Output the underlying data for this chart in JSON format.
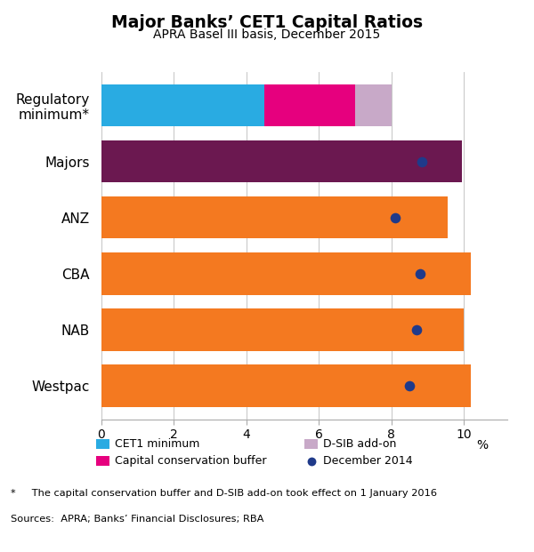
{
  "title": "Major Banks’ CET1 Capital Ratios",
  "subtitle": "APRA Basel III basis, December 2015",
  "bar_height": 0.75,
  "xlim": [
    0,
    11.2
  ],
  "xticks": [
    0,
    2,
    4,
    6,
    8,
    10
  ],
  "regulatory_segments": [
    4.5,
    2.5,
    1.0
  ],
  "regulatory_colors": [
    "#29abe2",
    "#e6007e",
    "#c8a9c8"
  ],
  "bars": [
    {
      "label": "Regulatory\nminimum*",
      "value": 8.0,
      "color": null,
      "dot": null,
      "y": 5
    },
    {
      "label": "Majors",
      "value": 9.95,
      "color": "#6b1850",
      "dot": 8.85,
      "y": 4
    },
    {
      "label": "ANZ",
      "value": 9.55,
      "color": "#f47920",
      "dot": 8.1,
      "y": 3
    },
    {
      "label": "CBA",
      "value": 10.2,
      "color": "#f47920",
      "dot": 8.8,
      "y": 2
    },
    {
      "label": "NAB",
      "value": 10.0,
      "color": "#f47920",
      "dot": 8.7,
      "y": 1
    },
    {
      "label": "Westpac",
      "value": 10.2,
      "color": "#f47920",
      "dot": 8.5,
      "y": 0
    }
  ],
  "dot_color": "#1f3a8a",
  "dot_size": 70,
  "legend_row1": [
    {
      "label": "CET1 minimum",
      "color": "#29abe2",
      "type": "patch"
    },
    {
      "label": "D-SIB add-on",
      "color": "#c8a9c8",
      "type": "patch"
    }
  ],
  "legend_row2": [
    {
      "label": "Capital conservation buffer",
      "color": "#e6007e",
      "type": "patch"
    },
    {
      "label": "December 2014",
      "color": "#1f3a8a",
      "type": "dot"
    }
  ],
  "footnote": "*     The capital conservation buffer and D-SIB add-on took effect on 1 January 2016",
  "sources": "Sources:  APRA; Banks’ Financial Disclosures; RBA",
  "bg_color": "#ffffff",
  "grid_color": "#bbbbbb",
  "spine_color": "#aaaaaa"
}
